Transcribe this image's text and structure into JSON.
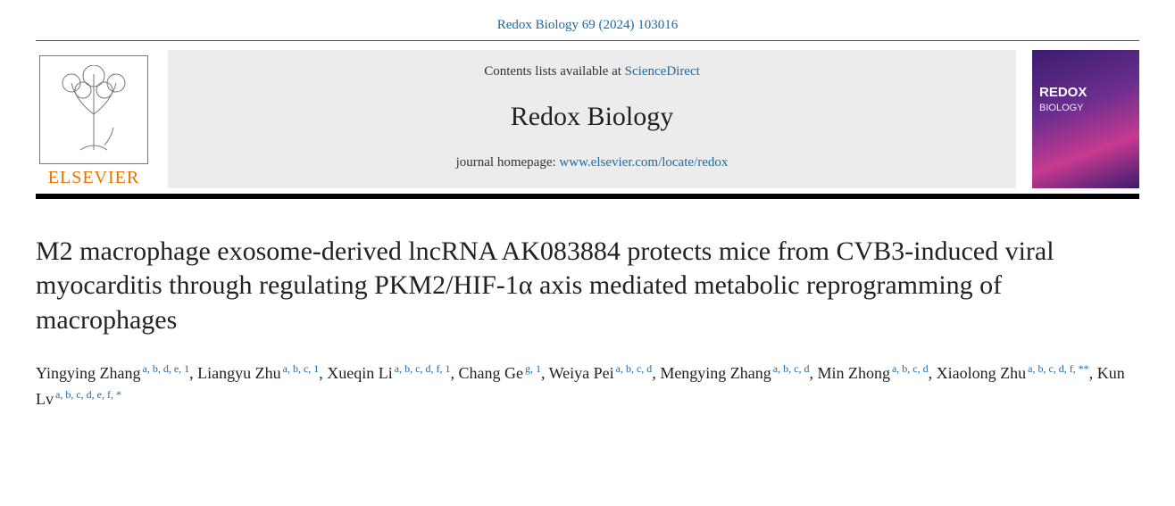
{
  "citation": "Redox Biology 69 (2024) 103016",
  "header": {
    "contents_prefix": "Contents lists available at ",
    "contents_link": "ScienceDirect",
    "journal_name": "Redox Biology",
    "homepage_prefix": "journal homepage: ",
    "homepage_link": "www.elsevier.com/locate/redox",
    "elsevier_word": "ELSEVIER",
    "cover_title_line1": "REDOX",
    "cover_title_line2": "BIOLOGY"
  },
  "title": "M2 macrophage exosome-derived lncRNA AK083884 protects mice from CVB3-induced viral myocarditis through regulating PKM2/HIF-1α axis mediated metabolic reprogramming of macrophages",
  "authors": [
    {
      "name": "Yingying Zhang",
      "affil": "a, b, d, e, 1"
    },
    {
      "name": "Liangyu Zhu",
      "affil": "a, b, c, 1"
    },
    {
      "name": "Xueqin Li",
      "affil": "a, b, c, d, f, 1"
    },
    {
      "name": "Chang Ge",
      "affil": "g, 1"
    },
    {
      "name": "Weiya Pei",
      "affil": "a, b, c, d"
    },
    {
      "name": "Mengying Zhang",
      "affil": "a, b, c, d"
    },
    {
      "name": "Min Zhong",
      "affil": "a, b, c, d"
    },
    {
      "name": "Xiaolong Zhu",
      "affil": "a, b, c, d, f, **"
    },
    {
      "name": "Kun Lv",
      "affil": "a, b, c, d, e, f, *"
    }
  ],
  "colors": {
    "link": "#1a6aa8",
    "elsevier_orange": "#e87400",
    "header_bg": "#ececec",
    "rule_thick": "#000000",
    "text": "#222222"
  },
  "typography": {
    "title_fontsize": 30,
    "journal_fontsize": 30,
    "authors_fontsize": 18,
    "citation_fontsize": 15
  }
}
